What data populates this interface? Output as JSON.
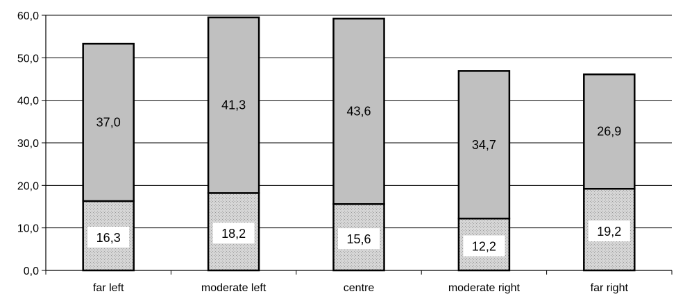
{
  "chart_data": {
    "type": "bar",
    "stacked": true,
    "categories": [
      "far left",
      "moderate left",
      "centre",
      "moderate right",
      "far right"
    ],
    "series": [
      {
        "values": [
          16.3,
          18.2,
          15.6,
          12.2,
          19.2
        ],
        "color": "#d9d9d9",
        "pattern": "dotted",
        "labels": [
          "16,3",
          "18,2",
          "15,6",
          "12,2",
          "19,2"
        ]
      },
      {
        "values": [
          37.0,
          41.3,
          43.6,
          34.7,
          26.9
        ],
        "color": "#c0c0c0",
        "labels": [
          "37,0",
          "41,3",
          "43,6",
          "34,7",
          "26,9"
        ]
      }
    ],
    "ylim": [
      0,
      60
    ],
    "yticks": [
      "0,0",
      "10,0",
      "20,0",
      "30,0",
      "40,0",
      "50,0",
      "60,0"
    ],
    "grid": true,
    "legend": "none",
    "title": "",
    "xlabel": "",
    "ylabel": ""
  }
}
